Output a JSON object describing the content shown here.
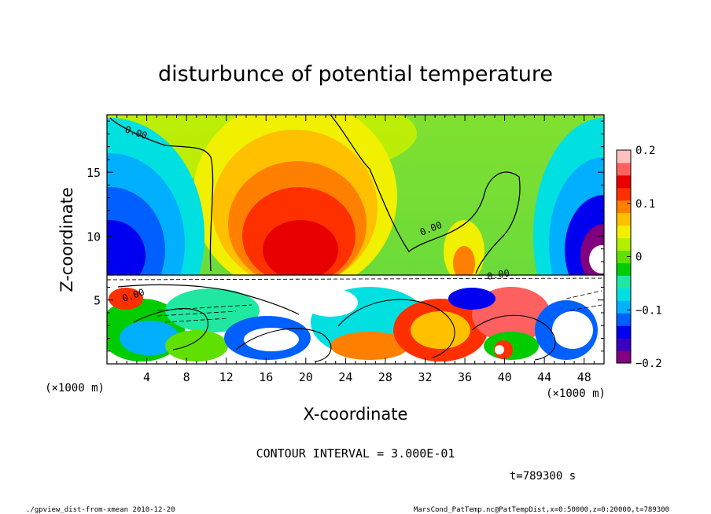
{
  "chart_data": {
    "type": "heatmap",
    "title": "disturbunce of potential temperature",
    "xlabel": "X-coordinate",
    "ylabel": "Z-coordinate",
    "x_unit_left": "(×1000 m)",
    "x_unit_right": "(×1000 m)",
    "xlim": [
      0,
      50
    ],
    "ylim": [
      0,
      19.5
    ],
    "x_ticks": [
      "4",
      "8",
      "12",
      "16",
      "20",
      "24",
      "28",
      "32",
      "36",
      "40",
      "44",
      "48"
    ],
    "y_ticks": [
      "5",
      "10",
      "15"
    ],
    "colorbar": {
      "range": [
        -0.2,
        0.2
      ],
      "ticks": [
        "0.2",
        "0.1",
        "0",
        "−0.1",
        "−0.2"
      ],
      "colors": [
        "#800080",
        "#3a00c0",
        "#0000f0",
        "#0060ff",
        "#00b0ff",
        "#00e0e0",
        "#20e8a0",
        "#00cc00",
        "#60e000",
        "#b0f000",
        "#f0f000",
        "#ffc000",
        "#ff8000",
        "#ff3000",
        "#e80000",
        "#ff6060",
        "#ffc0c0"
      ]
    },
    "contour_interval": "CONTOUR INTERVAL = 3.000E-01",
    "contour_labels": [
      "0.00",
      "0.00",
      "0.00",
      "0.00"
    ],
    "time_label": "t=789300 s"
  },
  "footer": {
    "left": "./gpview_dist-from-xmean  2010-12-20",
    "right": "MarsCond_PatTemp.nc@PatTempDist,x=0:50000,z=0:20000,t=789300"
  }
}
